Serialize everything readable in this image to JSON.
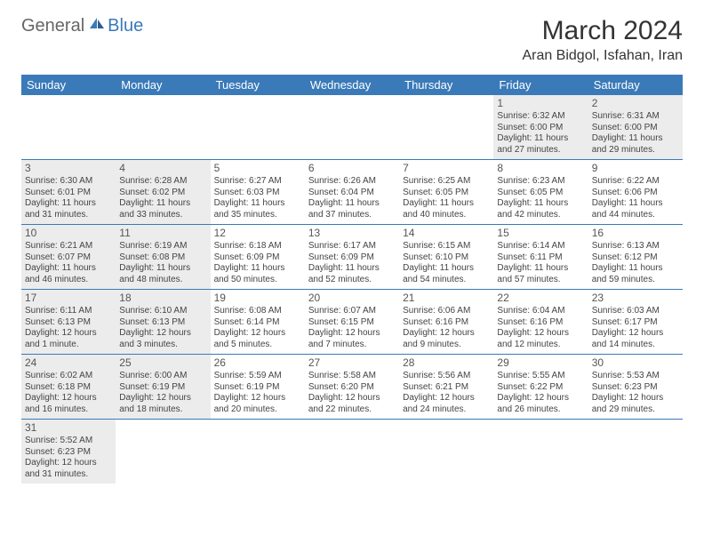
{
  "logo": {
    "part1": "General",
    "part2": "Blue"
  },
  "title": "March 2024",
  "location": "Aran Bidgol, Isfahan, Iran",
  "colors": {
    "header_bg": "#3a7ab8",
    "header_text": "#ffffff",
    "shaded_bg": "#ececec",
    "border": "#3a7ab8",
    "logo_blue": "#3a7ab8",
    "logo_gray": "#666666"
  },
  "weekdays": [
    "Sunday",
    "Monday",
    "Tuesday",
    "Wednesday",
    "Thursday",
    "Friday",
    "Saturday"
  ],
  "rows": [
    [
      {
        "empty": true
      },
      {
        "empty": true
      },
      {
        "empty": true
      },
      {
        "empty": true
      },
      {
        "empty": true
      },
      {
        "day": "1",
        "shaded": true,
        "sunrise": "Sunrise: 6:32 AM",
        "sunset": "Sunset: 6:00 PM",
        "daylight": "Daylight: 11 hours and 27 minutes."
      },
      {
        "day": "2",
        "shaded": true,
        "sunrise": "Sunrise: 6:31 AM",
        "sunset": "Sunset: 6:00 PM",
        "daylight": "Daylight: 11 hours and 29 minutes."
      }
    ],
    [
      {
        "day": "3",
        "shaded": true,
        "sunrise": "Sunrise: 6:30 AM",
        "sunset": "Sunset: 6:01 PM",
        "daylight": "Daylight: 11 hours and 31 minutes."
      },
      {
        "day": "4",
        "shaded": true,
        "sunrise": "Sunrise: 6:28 AM",
        "sunset": "Sunset: 6:02 PM",
        "daylight": "Daylight: 11 hours and 33 minutes."
      },
      {
        "day": "5",
        "sunrise": "Sunrise: 6:27 AM",
        "sunset": "Sunset: 6:03 PM",
        "daylight": "Daylight: 11 hours and 35 minutes."
      },
      {
        "day": "6",
        "sunrise": "Sunrise: 6:26 AM",
        "sunset": "Sunset: 6:04 PM",
        "daylight": "Daylight: 11 hours and 37 minutes."
      },
      {
        "day": "7",
        "sunrise": "Sunrise: 6:25 AM",
        "sunset": "Sunset: 6:05 PM",
        "daylight": "Daylight: 11 hours and 40 minutes."
      },
      {
        "day": "8",
        "sunrise": "Sunrise: 6:23 AM",
        "sunset": "Sunset: 6:05 PM",
        "daylight": "Daylight: 11 hours and 42 minutes."
      },
      {
        "day": "9",
        "sunrise": "Sunrise: 6:22 AM",
        "sunset": "Sunset: 6:06 PM",
        "daylight": "Daylight: 11 hours and 44 minutes."
      }
    ],
    [
      {
        "day": "10",
        "shaded": true,
        "sunrise": "Sunrise: 6:21 AM",
        "sunset": "Sunset: 6:07 PM",
        "daylight": "Daylight: 11 hours and 46 minutes."
      },
      {
        "day": "11",
        "shaded": true,
        "sunrise": "Sunrise: 6:19 AM",
        "sunset": "Sunset: 6:08 PM",
        "daylight": "Daylight: 11 hours and 48 minutes."
      },
      {
        "day": "12",
        "sunrise": "Sunrise: 6:18 AM",
        "sunset": "Sunset: 6:09 PM",
        "daylight": "Daylight: 11 hours and 50 minutes."
      },
      {
        "day": "13",
        "sunrise": "Sunrise: 6:17 AM",
        "sunset": "Sunset: 6:09 PM",
        "daylight": "Daylight: 11 hours and 52 minutes."
      },
      {
        "day": "14",
        "sunrise": "Sunrise: 6:15 AM",
        "sunset": "Sunset: 6:10 PM",
        "daylight": "Daylight: 11 hours and 54 minutes."
      },
      {
        "day": "15",
        "sunrise": "Sunrise: 6:14 AM",
        "sunset": "Sunset: 6:11 PM",
        "daylight": "Daylight: 11 hours and 57 minutes."
      },
      {
        "day": "16",
        "sunrise": "Sunrise: 6:13 AM",
        "sunset": "Sunset: 6:12 PM",
        "daylight": "Daylight: 11 hours and 59 minutes."
      }
    ],
    [
      {
        "day": "17",
        "shaded": true,
        "sunrise": "Sunrise: 6:11 AM",
        "sunset": "Sunset: 6:13 PM",
        "daylight": "Daylight: 12 hours and 1 minute."
      },
      {
        "day": "18",
        "shaded": true,
        "sunrise": "Sunrise: 6:10 AM",
        "sunset": "Sunset: 6:13 PM",
        "daylight": "Daylight: 12 hours and 3 minutes."
      },
      {
        "day": "19",
        "sunrise": "Sunrise: 6:08 AM",
        "sunset": "Sunset: 6:14 PM",
        "daylight": "Daylight: 12 hours and 5 minutes."
      },
      {
        "day": "20",
        "sunrise": "Sunrise: 6:07 AM",
        "sunset": "Sunset: 6:15 PM",
        "daylight": "Daylight: 12 hours and 7 minutes."
      },
      {
        "day": "21",
        "sunrise": "Sunrise: 6:06 AM",
        "sunset": "Sunset: 6:16 PM",
        "daylight": "Daylight: 12 hours and 9 minutes."
      },
      {
        "day": "22",
        "sunrise": "Sunrise: 6:04 AM",
        "sunset": "Sunset: 6:16 PM",
        "daylight": "Daylight: 12 hours and 12 minutes."
      },
      {
        "day": "23",
        "sunrise": "Sunrise: 6:03 AM",
        "sunset": "Sunset: 6:17 PM",
        "daylight": "Daylight: 12 hours and 14 minutes."
      }
    ],
    [
      {
        "day": "24",
        "shaded": true,
        "sunrise": "Sunrise: 6:02 AM",
        "sunset": "Sunset: 6:18 PM",
        "daylight": "Daylight: 12 hours and 16 minutes."
      },
      {
        "day": "25",
        "shaded": true,
        "sunrise": "Sunrise: 6:00 AM",
        "sunset": "Sunset: 6:19 PM",
        "daylight": "Daylight: 12 hours and 18 minutes."
      },
      {
        "day": "26",
        "sunrise": "Sunrise: 5:59 AM",
        "sunset": "Sunset: 6:19 PM",
        "daylight": "Daylight: 12 hours and 20 minutes."
      },
      {
        "day": "27",
        "sunrise": "Sunrise: 5:58 AM",
        "sunset": "Sunset: 6:20 PM",
        "daylight": "Daylight: 12 hours and 22 minutes."
      },
      {
        "day": "28",
        "sunrise": "Sunrise: 5:56 AM",
        "sunset": "Sunset: 6:21 PM",
        "daylight": "Daylight: 12 hours and 24 minutes."
      },
      {
        "day": "29",
        "sunrise": "Sunrise: 5:55 AM",
        "sunset": "Sunset: 6:22 PM",
        "daylight": "Daylight: 12 hours and 26 minutes."
      },
      {
        "day": "30",
        "sunrise": "Sunrise: 5:53 AM",
        "sunset": "Sunset: 6:23 PM",
        "daylight": "Daylight: 12 hours and 29 minutes."
      }
    ],
    [
      {
        "day": "31",
        "shaded": true,
        "sunrise": "Sunrise: 5:52 AM",
        "sunset": "Sunset: 6:23 PM",
        "daylight": "Daylight: 12 hours and 31 minutes."
      },
      {
        "empty": true
      },
      {
        "empty": true
      },
      {
        "empty": true
      },
      {
        "empty": true
      },
      {
        "empty": true
      },
      {
        "empty": true
      }
    ]
  ]
}
